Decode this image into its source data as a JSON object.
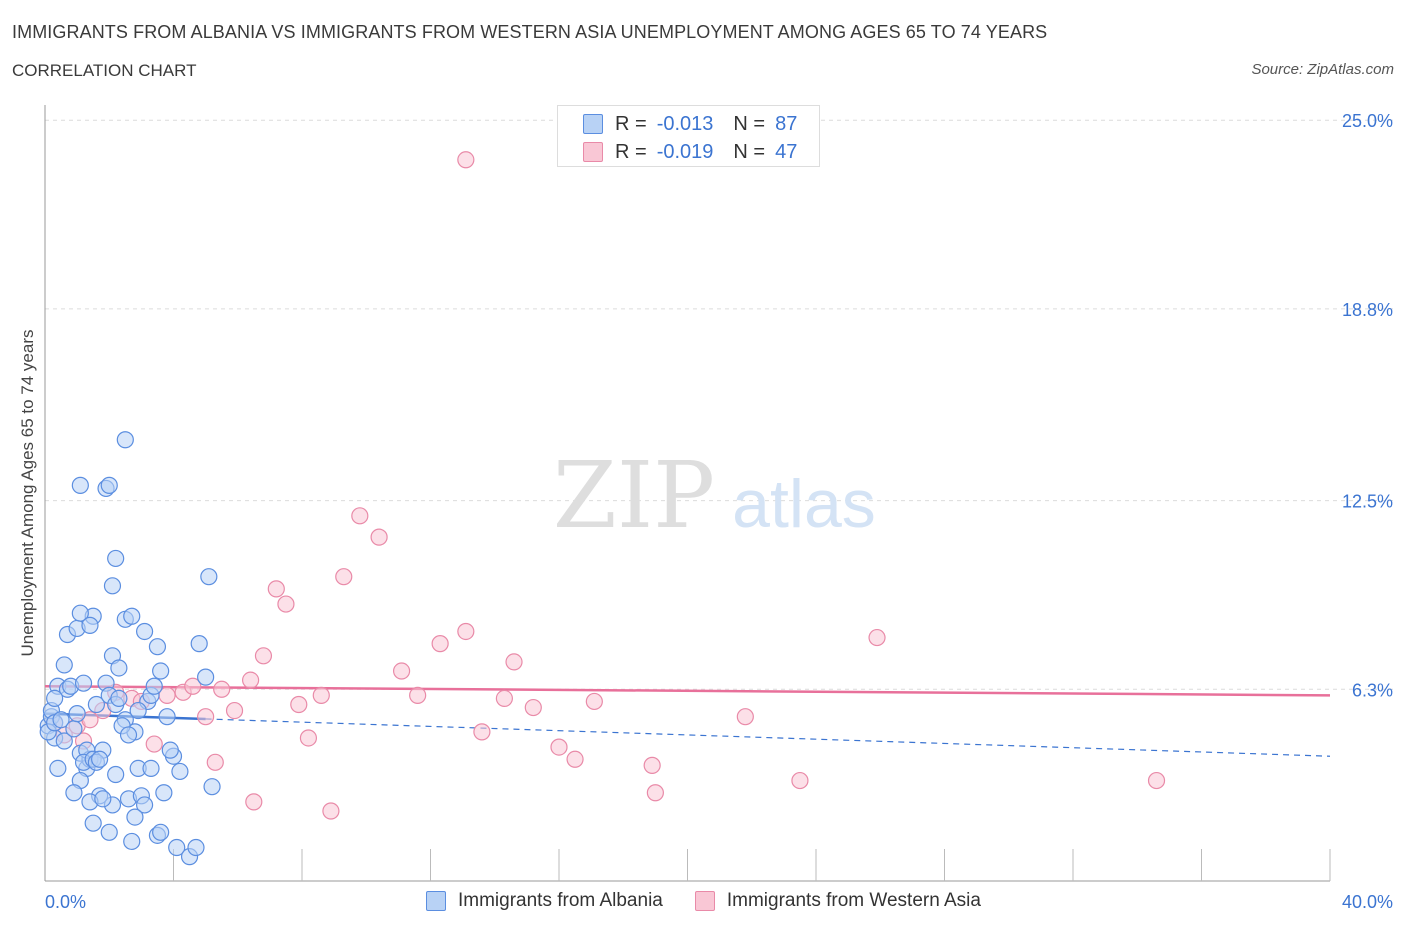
{
  "header": {
    "title": "IMMIGRANTS FROM ALBANIA VS IMMIGRANTS FROM WESTERN ASIA UNEMPLOYMENT AMONG AGES 65 TO 74 YEARS",
    "subtitle": "CORRELATION CHART",
    "source": "Source: ZipAtlas.com"
  },
  "legend": {
    "series1": {
      "r_label": "R =",
      "r_value": "-0.013",
      "n_label": "N =",
      "n_value": "87"
    },
    "series2": {
      "r_label": "R =",
      "r_value": "-0.019",
      "n_label": "N =",
      "n_value": "47"
    }
  },
  "watermark": {
    "zip": "ZIP",
    "atlas": "atlas"
  },
  "colors": {
    "albania_fill": "#b8d2f5",
    "albania_stroke": "#5b8ee0",
    "albania_line": "#3b74d1",
    "western_asia_fill": "#f9c7d5",
    "western_asia_stroke": "#e98aa8",
    "western_asia_line": "#e8709a",
    "tick_label": "#3b74d1"
  },
  "chart_data": {
    "type": "scatter",
    "title": "IMMIGRANTS FROM ALBANIA VS IMMIGRANTS FROM WESTERN ASIA UNEMPLOYMENT AMONG AGES 65 TO 74 YEARS",
    "xlabel": "",
    "ylabel": "Unemployment Among Ages 65 to 74 years",
    "xlim": [
      0,
      40
    ],
    "ylim": [
      0,
      25.5
    ],
    "x_tick_labels": [
      "0.0%",
      "40.0%"
    ],
    "y_ticks": [
      6.3,
      12.5,
      18.8,
      25.0
    ],
    "y_tick_labels": [
      "6.3%",
      "12.5%",
      "18.8%",
      "25.0%"
    ],
    "grid": true,
    "legend_position": "top-center",
    "series": [
      {
        "name": "Immigrants from Albania",
        "R": -0.013,
        "N": 87,
        "trend": {
          "x_start": 0,
          "y_start": 5.5,
          "x_solid_end": 5,
          "x_end": 40,
          "y_end": 4.1
        },
        "points": [
          [
            0.1,
            5.1
          ],
          [
            0.2,
            5.4
          ],
          [
            0.3,
            4.7
          ],
          [
            0.1,
            4.9
          ],
          [
            0.2,
            5.6
          ],
          [
            0.3,
            5.2
          ],
          [
            0.4,
            6.4
          ],
          [
            0.5,
            5.3
          ],
          [
            0.6,
            4.6
          ],
          [
            0.7,
            6.3
          ],
          [
            0.3,
            6.0
          ],
          [
            0.4,
            3.7
          ],
          [
            0.6,
            7.1
          ],
          [
            0.7,
            8.1
          ],
          [
            0.8,
            6.4
          ],
          [
            0.9,
            5.0
          ],
          [
            1.0,
            8.3
          ],
          [
            1.1,
            4.2
          ],
          [
            1.2,
            6.5
          ],
          [
            1.3,
            3.7
          ],
          [
            1.4,
            4.0
          ],
          [
            1.5,
            8.7
          ],
          [
            1.6,
            5.8
          ],
          [
            1.7,
            2.8
          ],
          [
            1.8,
            4.3
          ],
          [
            1.9,
            6.5
          ],
          [
            2.0,
            1.6
          ],
          [
            2.1,
            2.5
          ],
          [
            2.2,
            3.5
          ],
          [
            1.1,
            3.3
          ],
          [
            1.3,
            4.3
          ],
          [
            0.9,
            2.9
          ],
          [
            1.2,
            3.9
          ],
          [
            1.4,
            2.6
          ],
          [
            1.5,
            4.0
          ],
          [
            1.6,
            3.9
          ],
          [
            1.7,
            4.0
          ],
          [
            1.8,
            2.7
          ],
          [
            2.0,
            6.1
          ],
          [
            2.1,
            7.4
          ],
          [
            2.2,
            5.8
          ],
          [
            2.3,
            7.0
          ],
          [
            2.5,
            5.3
          ],
          [
            2.6,
            2.7
          ],
          [
            2.7,
            1.3
          ],
          [
            2.8,
            4.9
          ],
          [
            2.9,
            3.7
          ],
          [
            3.0,
            2.8
          ],
          [
            3.1,
            2.5
          ],
          [
            3.2,
            5.9
          ],
          [
            3.3,
            6.1
          ],
          [
            3.4,
            6.4
          ],
          [
            3.5,
            1.5
          ],
          [
            3.6,
            6.9
          ],
          [
            3.7,
            2.9
          ],
          [
            3.8,
            5.4
          ],
          [
            4.0,
            4.1
          ],
          [
            4.1,
            1.1
          ],
          [
            4.5,
            0.8
          ],
          [
            4.7,
            1.1
          ],
          [
            5.0,
            6.7
          ],
          [
            5.2,
            3.1
          ],
          [
            2.5,
            14.5
          ],
          [
            1.1,
            13.0
          ],
          [
            1.9,
            12.9
          ],
          [
            2.0,
            13.0
          ],
          [
            2.2,
            10.6
          ],
          [
            2.1,
            9.7
          ],
          [
            5.1,
            10.0
          ],
          [
            1.1,
            8.8
          ],
          [
            1.4,
            8.4
          ],
          [
            2.5,
            8.6
          ],
          [
            2.7,
            8.7
          ],
          [
            3.1,
            8.2
          ],
          [
            3.5,
            7.7
          ],
          [
            4.8,
            7.8
          ],
          [
            2.3,
            6.0
          ],
          [
            1.0,
            5.5
          ],
          [
            2.9,
            5.6
          ],
          [
            2.4,
            5.1
          ],
          [
            3.9,
            4.3
          ],
          [
            2.6,
            4.8
          ],
          [
            3.3,
            3.7
          ],
          [
            4.2,
            3.6
          ],
          [
            2.8,
            2.1
          ],
          [
            3.6,
            1.6
          ],
          [
            1.5,
            1.9
          ]
        ]
      },
      {
        "name": "Immigrants from Western Asia",
        "R": -0.019,
        "N": 47,
        "trend": {
          "x_start": 0,
          "y_start": 6.4,
          "x_end": 40,
          "y_end": 6.1
        },
        "points": [
          [
            0.3,
            5.2
          ],
          [
            0.6,
            4.8
          ],
          [
            1.0,
            5.1
          ],
          [
            1.4,
            5.3
          ],
          [
            1.8,
            5.6
          ],
          [
            2.2,
            6.2
          ],
          [
            2.7,
            6.0
          ],
          [
            3.0,
            5.9
          ],
          [
            3.4,
            4.5
          ],
          [
            3.8,
            6.1
          ],
          [
            4.3,
            6.2
          ],
          [
            4.6,
            6.4
          ],
          [
            5.0,
            5.4
          ],
          [
            5.5,
            6.3
          ],
          [
            5.9,
            5.6
          ],
          [
            6.4,
            6.6
          ],
          [
            6.8,
            7.4
          ],
          [
            7.2,
            9.6
          ],
          [
            7.5,
            9.1
          ],
          [
            7.9,
            5.8
          ],
          [
            8.2,
            4.7
          ],
          [
            8.6,
            6.1
          ],
          [
            8.9,
            2.3
          ],
          [
            9.3,
            10.0
          ],
          [
            9.8,
            12.0
          ],
          [
            10.4,
            11.3
          ],
          [
            11.1,
            6.9
          ],
          [
            11.6,
            6.1
          ],
          [
            12.3,
            7.8
          ],
          [
            13.1,
            8.2
          ],
          [
            13.6,
            4.9
          ],
          [
            14.3,
            6.0
          ],
          [
            14.6,
            7.2
          ],
          [
            15.2,
            5.7
          ],
          [
            16.0,
            4.4
          ],
          [
            16.5,
            4.0
          ],
          [
            17.1,
            5.9
          ],
          [
            18.9,
            3.8
          ],
          [
            19.0,
            2.9
          ],
          [
            21.8,
            5.4
          ],
          [
            23.5,
            3.3
          ],
          [
            25.9,
            8.0
          ],
          [
            34.6,
            3.3
          ],
          [
            13.1,
            23.7
          ],
          [
            5.3,
            3.9
          ],
          [
            6.5,
            2.6
          ],
          [
            1.2,
            4.6
          ]
        ]
      }
    ]
  }
}
